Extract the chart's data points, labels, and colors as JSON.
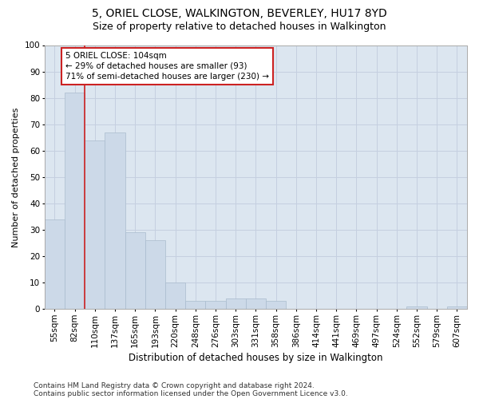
{
  "title": "5, ORIEL CLOSE, WALKINGTON, BEVERLEY, HU17 8YD",
  "subtitle": "Size of property relative to detached houses in Walkington",
  "xlabel": "Distribution of detached houses by size in Walkington",
  "ylabel": "Number of detached properties",
  "bar_color": "#ccd9e8",
  "bar_edge_color": "#aabcce",
  "grid_color": "#c5cfe0",
  "background_color": "#dce6f0",
  "vline_color": "#cc2222",
  "vline_x_index": 1.5,
  "annotation_text": "5 ORIEL CLOSE: 104sqm\n← 29% of detached houses are smaller (93)\n71% of semi-detached houses are larger (230) →",
  "annotation_box_facecolor": "#ffffff",
  "annotation_box_edge": "#cc2222",
  "categories": [
    "55sqm",
    "82sqm",
    "110sqm",
    "137sqm",
    "165sqm",
    "193sqm",
    "220sqm",
    "248sqm",
    "276sqm",
    "303sqm",
    "331sqm",
    "358sqm",
    "386sqm",
    "414sqm",
    "441sqm",
    "469sqm",
    "497sqm",
    "524sqm",
    "552sqm",
    "579sqm",
    "607sqm"
  ],
  "values": [
    34,
    82,
    64,
    67,
    29,
    26,
    10,
    3,
    3,
    4,
    4,
    3,
    0,
    0,
    0,
    0,
    0,
    0,
    1,
    0,
    1
  ],
  "ylim": [
    0,
    100
  ],
  "yticks": [
    0,
    10,
    20,
    30,
    40,
    50,
    60,
    70,
    80,
    90,
    100
  ],
  "footnote1": "Contains HM Land Registry data © Crown copyright and database right 2024.",
  "footnote2": "Contains public sector information licensed under the Open Government Licence v3.0.",
  "title_fontsize": 10,
  "subtitle_fontsize": 9,
  "xlabel_fontsize": 8.5,
  "ylabel_fontsize": 8,
  "tick_fontsize": 7.5,
  "footnote_fontsize": 6.5,
  "annotation_fontsize": 7.5
}
